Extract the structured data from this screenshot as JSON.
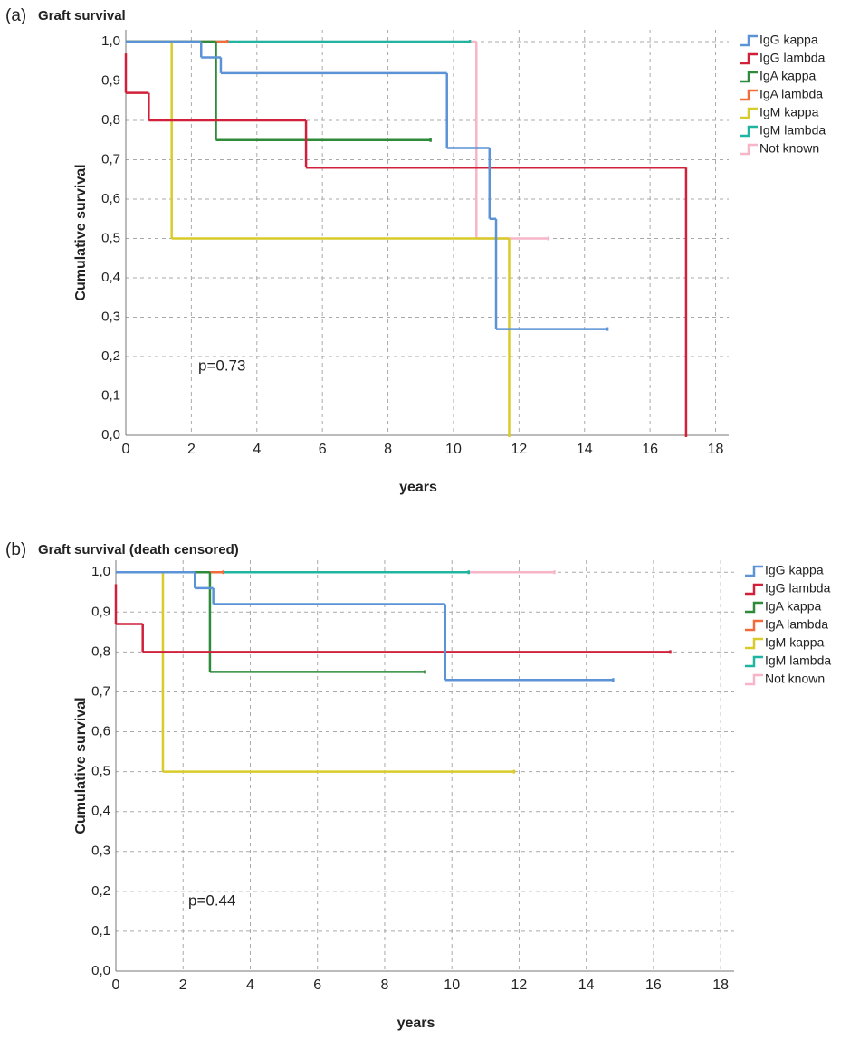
{
  "chart_data": [
    {
      "type": "step",
      "label": "(a)",
      "title": "Graft survival",
      "xlabel": "years",
      "ylabel": "Cumulative survival",
      "annotation": "p=0.73",
      "xlim": [
        0,
        18.4
      ],
      "ylim": [
        0,
        1.03
      ],
      "xticks": [
        0,
        2,
        4,
        6,
        8,
        10,
        12,
        14,
        16,
        18
      ],
      "yticks": [
        {
          "value": 0,
          "label": "0,0"
        },
        {
          "value": 0.1,
          "label": "0,1"
        },
        {
          "value": 0.2,
          "label": "0,2"
        },
        {
          "value": 0.3,
          "label": "0,3"
        },
        {
          "value": 0.4,
          "label": "0,4"
        },
        {
          "value": 0.5,
          "label": "0,5"
        },
        {
          "value": 0.6,
          "label": "0,6"
        },
        {
          "value": 0.7,
          "label": "0,7"
        },
        {
          "value": 0.8,
          "label": "0,8"
        },
        {
          "value": 0.9,
          "label": "0,9"
        },
        {
          "value": 1,
          "label": "1,0"
        }
      ],
      "grid": true,
      "legend": "right",
      "series": [
        {
          "name": "IgG kappa",
          "color": "#5b93d6",
          "x": [
            0,
            2.3,
            2.9,
            9.8,
            11.1,
            11.3,
            14.7
          ],
          "values": [
            1,
            0.96,
            0.92,
            0.73,
            0.55,
            0.27,
            0.27
          ]
        },
        {
          "name": "IgG lambda",
          "color": "#d0203a",
          "x": [
            0,
            0,
            0.7,
            5.5,
            17.1
          ],
          "values": [
            0.97,
            0.87,
            0.8,
            0.68,
            0
          ]
        },
        {
          "name": "IgA kappa",
          "color": "#2e8b3a",
          "x": [
            0,
            2.75,
            9.3
          ],
          "values": [
            1,
            0.75,
            0.75
          ]
        },
        {
          "name": "IgA lambda",
          "color": "#f26b3a",
          "x": [
            0,
            3.1
          ],
          "values": [
            1,
            1
          ]
        },
        {
          "name": "IgM kappa",
          "color": "#d8cc2a",
          "x": [
            0,
            1.4,
            11.7
          ],
          "values": [
            1,
            0.5,
            0
          ]
        },
        {
          "name": "IgM lambda",
          "color": "#20b5a0",
          "x": [
            0,
            10.5
          ],
          "values": [
            1,
            1
          ]
        },
        {
          "name": "Not known",
          "color": "#f7b6c8",
          "x": [
            0,
            10.7,
            12.9
          ],
          "values": [
            1,
            0.5,
            0.5
          ]
        }
      ]
    },
    {
      "type": "step",
      "label": "(b)",
      "title": "Graft survival (death censored)",
      "xlabel": "years",
      "ylabel": "Cumulative survival",
      "annotation": "p=0.44",
      "xlim": [
        0,
        18.4
      ],
      "ylim": [
        0,
        1.03
      ],
      "xticks": [
        0,
        2,
        4,
        6,
        8,
        10,
        12,
        14,
        16,
        18
      ],
      "yticks": [
        {
          "value": 0,
          "label": "0,0"
        },
        {
          "value": 0.1,
          "label": "0,1"
        },
        {
          "value": 0.2,
          "label": "0,2"
        },
        {
          "value": 0.3,
          "label": "0,3"
        },
        {
          "value": 0.4,
          "label": "0,4"
        },
        {
          "value": 0.5,
          "label": "0,5"
        },
        {
          "value": 0.6,
          "label": "0,6"
        },
        {
          "value": 0.7,
          "label": "0,7"
        },
        {
          "value": 0.8,
          "label": "0,8"
        },
        {
          "value": 0.9,
          "label": "0,9"
        },
        {
          "value": 1,
          "label": "1,0"
        }
      ],
      "grid": true,
      "legend": "right",
      "series": [
        {
          "name": "IgG kappa",
          "color": "#5b93d6",
          "x": [
            0,
            2.35,
            2.9,
            9.8,
            14.8
          ],
          "values": [
            1,
            0.96,
            0.92,
            0.73,
            0.73
          ]
        },
        {
          "name": "IgG lambda",
          "color": "#d0203a",
          "x": [
            0,
            0,
            0.8,
            16.5
          ],
          "values": [
            0.97,
            0.87,
            0.8,
            0.8
          ]
        },
        {
          "name": "IgA kappa",
          "color": "#2e8b3a",
          "x": [
            0,
            2.8,
            9.2
          ],
          "values": [
            1,
            0.75,
            0.75
          ]
        },
        {
          "name": "IgA lambda",
          "color": "#f26b3a",
          "x": [
            0,
            3.2
          ],
          "values": [
            1,
            1
          ]
        },
        {
          "name": "IgM kappa",
          "color": "#d8cc2a",
          "x": [
            0,
            1.4,
            11.85
          ],
          "values": [
            1,
            0.5,
            0.5
          ]
        },
        {
          "name": "IgM lambda",
          "color": "#20b5a0",
          "x": [
            0,
            10.5
          ],
          "values": [
            1,
            1
          ]
        },
        {
          "name": "Not known",
          "color": "#f7b6c8",
          "x": [
            0,
            13.05
          ],
          "values": [
            1,
            1
          ]
        }
      ]
    }
  ]
}
